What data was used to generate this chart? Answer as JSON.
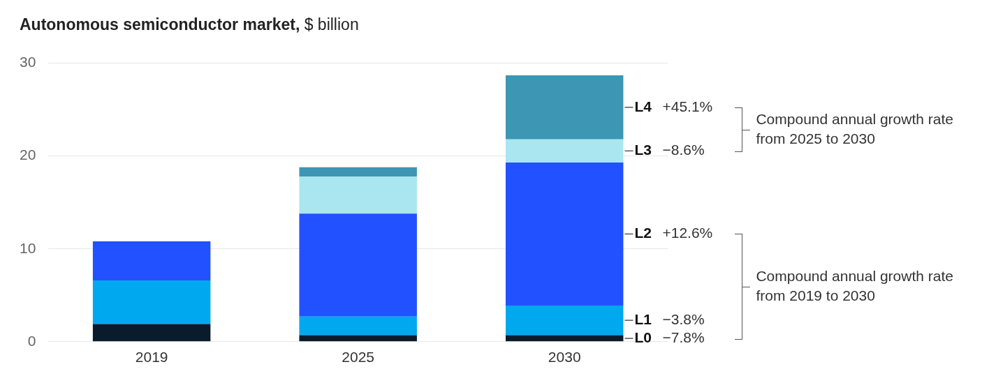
{
  "chart_data": {
    "type": "bar",
    "title": "Autonomous semiconductor market,",
    "subtitle": "$ billion",
    "stacked": true,
    "categories": [
      "2019",
      "2025",
      "2030"
    ],
    "series": [
      {
        "name": "L0",
        "color": "#0a1c2c",
        "values": [
          1.9,
          0.7,
          0.7
        ]
      },
      {
        "name": "L1",
        "color": "#00a8f0",
        "values": [
          4.7,
          2.0,
          3.2
        ]
      },
      {
        "name": "L2",
        "color": "#2251ff",
        "values": [
          4.2,
          11.1,
          15.4
        ]
      },
      {
        "name": "L3",
        "color": "#aae6f0",
        "values": [
          null,
          4.0,
          2.5
        ]
      },
      {
        "name": "L4",
        "color": "#3c96b4",
        "values": [
          null,
          1.0,
          6.9
        ]
      }
    ],
    "ylim": [
      0,
      30
    ],
    "yticks": [
      0,
      10,
      20,
      30
    ],
    "grid": "y",
    "annotations": [
      "+45.1%",
      "−8.6%",
      "+12.6%",
      "−3.8%",
      "−7.8%",
      "Compound annual growth rate from 2025 to 2030",
      "Compound annual growth rate from 2019 to 2030"
    ]
  }
}
